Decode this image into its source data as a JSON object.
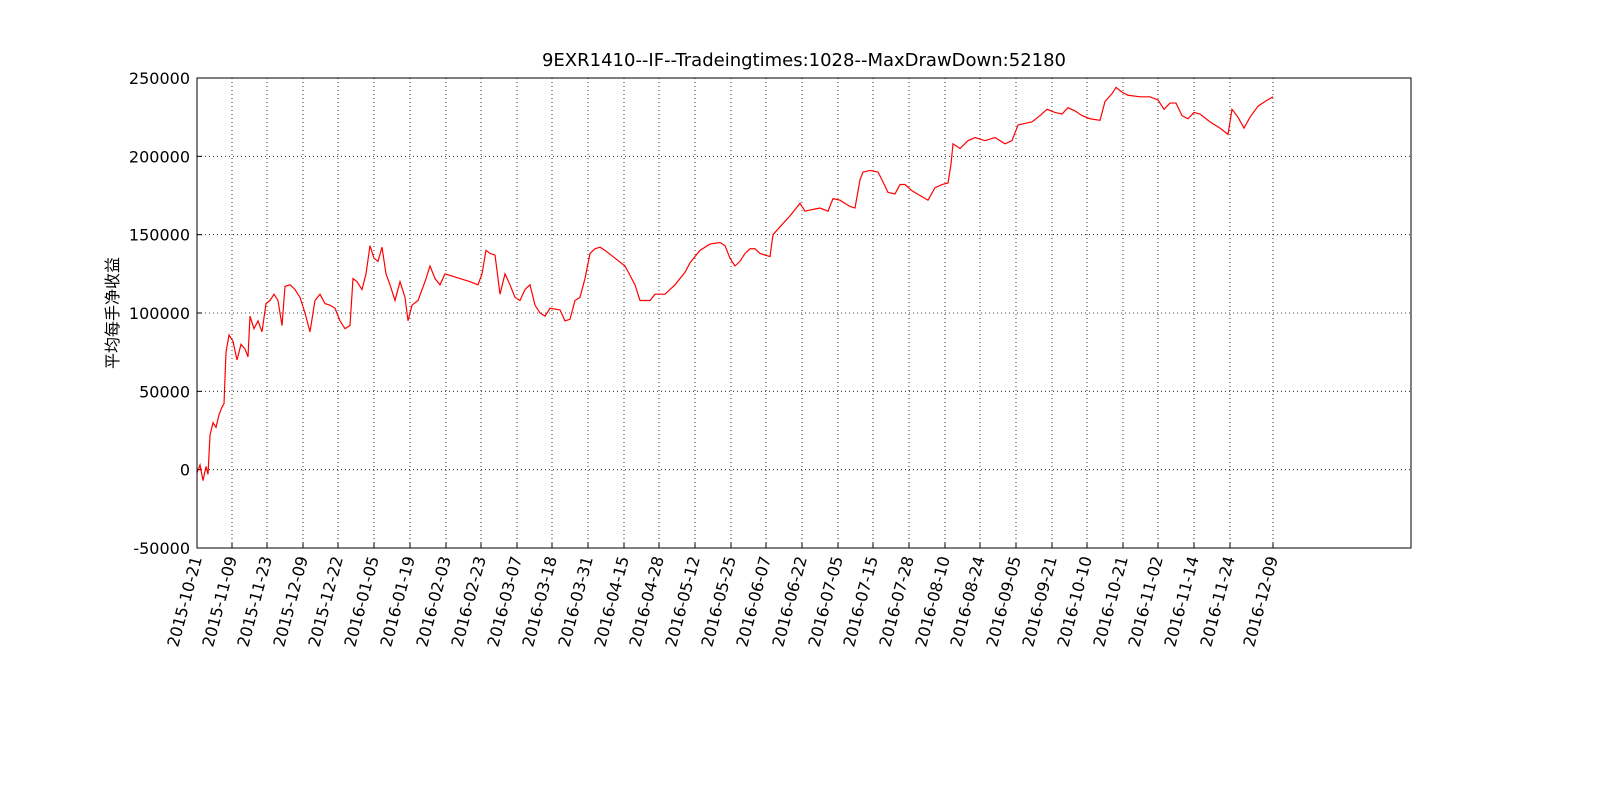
{
  "chart_data": {
    "type": "line",
    "title": "9EXR1410--IF--Tradeingtimes:1028--MaxDrawDown:52180",
    "ylabel": "平均每手净收益",
    "x": [
      0,
      3,
      6,
      9,
      11,
      13,
      16,
      19,
      22,
      25,
      27,
      29,
      32,
      36,
      40,
      44,
      48,
      51,
      53,
      57,
      61,
      65,
      69,
      73,
      77,
      81,
      85,
      88,
      93,
      98,
      103,
      108,
      113,
      118,
      123,
      128,
      133,
      138,
      143,
      148,
      153,
      156,
      160,
      165,
      169,
      173,
      177,
      181,
      185,
      189,
      193,
      198,
      203,
      208,
      211,
      215,
      221,
      228,
      233,
      238,
      243,
      248,
      253,
      263,
      273,
      281,
      285,
      289,
      293,
      298,
      303,
      308,
      313,
      318,
      323,
      328,
      333,
      338,
      343,
      348,
      353,
      363,
      368,
      373,
      378,
      383,
      388,
      393,
      398,
      403,
      408,
      418,
      428,
      438,
      443,
      453,
      458,
      468,
      478,
      488,
      493,
      503,
      513,
      523,
      528,
      533,
      538,
      543,
      548,
      553,
      558,
      563,
      573,
      576,
      583,
      593,
      598,
      603,
      608,
      615,
      623,
      631,
      636,
      643,
      653,
      658,
      663,
      666,
      673,
      681,
      685,
      691,
      698,
      703,
      708,
      715,
      723,
      731,
      738,
      745,
      751,
      754,
      756,
      763,
      771,
      778,
      788,
      798,
      808,
      815,
      821,
      828,
      835,
      843,
      850,
      858,
      865,
      871,
      878,
      885,
      893,
      903,
      908,
      915,
      919,
      925,
      931,
      943,
      953,
      961,
      967,
      973,
      979,
      985,
      991,
      997,
      1003,
      1013,
      1023,
      1031,
      1035,
      1041,
      1047,
      1053,
      1061,
      1068,
      1076
    ],
    "series": [
      {
        "name": null,
        "color": "#ff0000",
        "values": [
          -2000,
          3000,
          -7000,
          2000,
          -3000,
          22000,
          30000,
          27000,
          35000,
          40000,
          42000,
          75000,
          86000,
          82000,
          70000,
          80000,
          77000,
          72000,
          98000,
          90000,
          95000,
          88000,
          106000,
          108000,
          112000,
          108000,
          92000,
          117000,
          118000,
          115000,
          110000,
          100000,
          88000,
          108000,
          112000,
          106000,
          105000,
          103000,
          95000,
          90000,
          92000,
          122000,
          120000,
          115000,
          125000,
          143000,
          135000,
          133000,
          142000,
          125000,
          118000,
          108000,
          120000,
          110000,
          95000,
          105000,
          108000,
          120000,
          130000,
          122000,
          118000,
          125000,
          124000,
          122000,
          120000,
          118000,
          125000,
          140000,
          138000,
          137000,
          112000,
          125000,
          118000,
          110000,
          108000,
          115000,
          118000,
          105000,
          100000,
          98000,
          103000,
          102000,
          95000,
          96000,
          108000,
          110000,
          122000,
          138000,
          141000,
          142000,
          140000,
          135000,
          130000,
          118000,
          108000,
          108000,
          112000,
          112000,
          118000,
          126000,
          132000,
          140000,
          144000,
          145000,
          143000,
          135000,
          130000,
          133000,
          138000,
          141000,
          141000,
          138000,
          136000,
          150000,
          155000,
          162000,
          166000,
          170000,
          165000,
          166000,
          167000,
          165000,
          173000,
          172000,
          168000,
          167000,
          185000,
          190000,
          191000,
          190000,
          185000,
          177000,
          176000,
          182000,
          182000,
          178000,
          175000,
          172000,
          180000,
          182000,
          183000,
          195000,
          208000,
          205000,
          210000,
          212000,
          210000,
          212000,
          208000,
          210000,
          220000,
          221000,
          222000,
          226000,
          230000,
          228000,
          227000,
          231000,
          229000,
          226000,
          224000,
          223000,
          235000,
          240000,
          244000,
          241000,
          239000,
          238000,
          238000,
          236000,
          230000,
          234000,
          234000,
          226000,
          224000,
          228000,
          227000,
          222000,
          218000,
          214000,
          230000,
          225000,
          218000,
          225000,
          232000,
          235000,
          238000
        ]
      }
    ],
    "xlim": [
      0,
      1214
    ],
    "xticks": [
      {
        "value": 0,
        "label": "2015-10-21"
      },
      {
        "value": 35,
        "label": "2015-11-09"
      },
      {
        "value": 70,
        "label": "2015-11-23"
      },
      {
        "value": 106,
        "label": "2015-12-09"
      },
      {
        "value": 141,
        "label": "2015-12-22"
      },
      {
        "value": 177,
        "label": "2016-01-05"
      },
      {
        "value": 213,
        "label": "2016-01-19"
      },
      {
        "value": 249,
        "label": "2016-02-03"
      },
      {
        "value": 284,
        "label": "2016-02-23"
      },
      {
        "value": 320,
        "label": "2016-03-07"
      },
      {
        "value": 355,
        "label": "2016-03-18"
      },
      {
        "value": 391,
        "label": "2016-03-31"
      },
      {
        "value": 427,
        "label": "2016-04-15"
      },
      {
        "value": 462,
        "label": "2016-04-28"
      },
      {
        "value": 498,
        "label": "2016-05-12"
      },
      {
        "value": 534,
        "label": "2016-05-25"
      },
      {
        "value": 569,
        "label": "2016-06-07"
      },
      {
        "value": 605,
        "label": "2016-06-22"
      },
      {
        "value": 641,
        "label": "2016-07-05"
      },
      {
        "value": 676,
        "label": "2016-07-15"
      },
      {
        "value": 712,
        "label": "2016-07-28"
      },
      {
        "value": 748,
        "label": "2016-08-10"
      },
      {
        "value": 783,
        "label": "2016-08-24"
      },
      {
        "value": 819,
        "label": "2016-09-05"
      },
      {
        "value": 855,
        "label": "2016-09-21"
      },
      {
        "value": 890,
        "label": "2016-10-10"
      },
      {
        "value": 926,
        "label": "2016-10-21"
      },
      {
        "value": 961,
        "label": "2016-11-02"
      },
      {
        "value": 997,
        "label": "2016-11-14"
      },
      {
        "value": 1033,
        "label": "2016-11-24"
      },
      {
        "value": 1076,
        "label": "2016-12-09"
      }
    ],
    "ylim": [
      -50000,
      250000
    ],
    "yticks": [
      -50000,
      0,
      50000,
      100000,
      150000,
      200000,
      250000
    ],
    "grid": true
  }
}
